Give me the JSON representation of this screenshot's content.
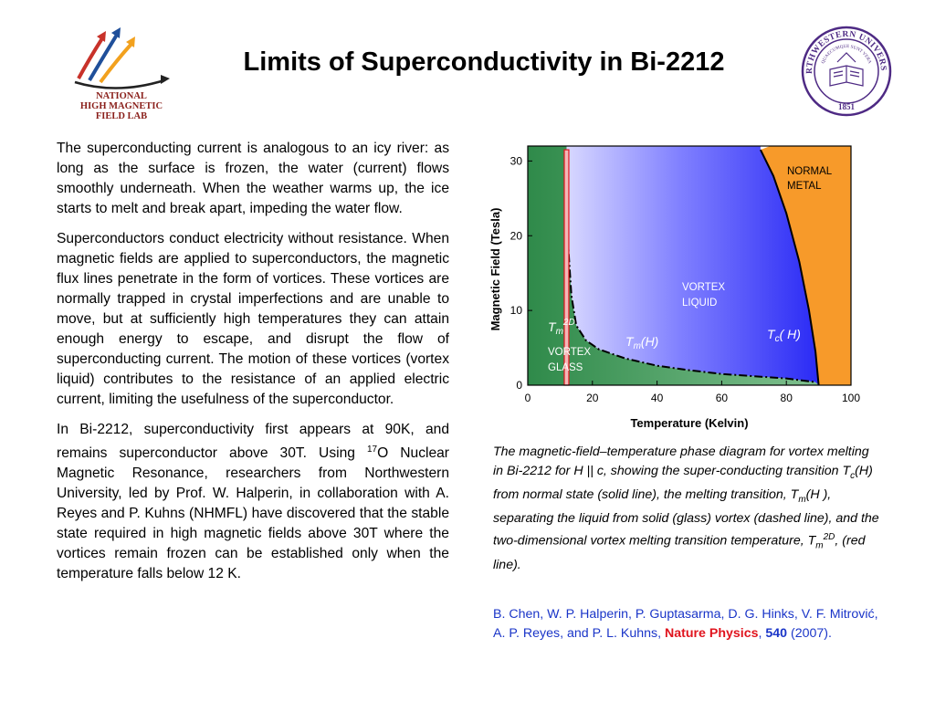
{
  "slide": {
    "title": "Limits of Superconductivity in Bi-2212"
  },
  "logos": {
    "nhmfl": {
      "icon": "nhmfl-arrows-logo",
      "line1": "NATIONAL",
      "line2": "HIGH MAGNETIC",
      "line3": "FIELD LAB",
      "colors": {
        "red": "#c8322a",
        "blue": "#1f4f9a",
        "orange": "#f2a11e",
        "text": "#8a1f1a"
      }
    },
    "northwestern": {
      "icon": "northwestern-seal",
      "ring_text": "NORTHWESTERN UNIVERSITY",
      "motto": "QUAECUMQUE SUNT VERA",
      "year": "1851",
      "color": "#4e2a84"
    }
  },
  "body": {
    "p1": "The superconducting current is analogous to an icy river: as long as the surface is frozen, the water (current) flows smoothly underneath. When the weather warms up, the ice starts to melt and break apart, impeding the water flow.",
    "p2": "Superconductors conduct electricity without resistance. When magnetic fields are applied to superconductors, the magnetic flux lines penetrate in the form of vortices. These vortices are normally trapped in crystal imperfections and are unable to move, but at sufficiently high temperatures they can attain enough energy to escape, and disrupt the flow of superconducting current. The motion of these vortices (vortex liquid) contributes to the resistance of an applied electric current, limiting the usefulness of the superconductor.",
    "p3_a": "In Bi-2212, superconductivity first appears at 90K, and remains superconductor above 30T. Using ",
    "p3_sup": "17",
    "p3_b": "O Nuclear Magnetic Resonance, researchers from Northwestern University, led by Prof. W. Halperin, in collaboration with A. Reyes and P. Kuhns (NHMFL) have discovered that the stable state required in high magnetic fields above 30T where the vortices remain frozen can be established only when the temperature falls below 12 K."
  },
  "diagram": {
    "xlabel": "Temperature (Kelvin)",
    "ylabel": "Magnetic Field (Tesla)",
    "xlim": [
      0,
      100
    ],
    "ylim": [
      0,
      32
    ],
    "xticks": [
      "0",
      "20",
      "40",
      "60",
      "80",
      "100"
    ],
    "yticks": [
      "0",
      "10",
      "20",
      "30"
    ],
    "regions": {
      "normal_l1": "NORMAL",
      "normal_l2": "METAL",
      "liquid_l1": "VORTEX",
      "liquid_l2": "LIQUID",
      "glass_l1": "VORTEX",
      "glass_l2": "GLASS"
    },
    "labels": {
      "tm2d_main": "T",
      "tm2d_sub": "m",
      "tm2d_sup": "2D",
      "tmh_main": "T",
      "tmh_sub": "m",
      "tmh_arg": "(H)",
      "tch_main": "T",
      "tch_sub": "c",
      "tch_arg": "( H)"
    },
    "tc_line": [
      [
        72,
        31.5
      ],
      [
        76,
        28
      ],
      [
        80,
        23
      ],
      [
        84,
        16.5
      ],
      [
        87,
        10
      ],
      [
        89,
        4.5
      ],
      [
        90,
        0
      ]
    ],
    "tm_line": [
      [
        12,
        30
      ],
      [
        12.2,
        24
      ],
      [
        12.6,
        18
      ],
      [
        13.5,
        12
      ],
      [
        15,
        8
      ],
      [
        18,
        6
      ],
      [
        22,
        4.8
      ],
      [
        30,
        3.6
      ],
      [
        40,
        2.6
      ],
      [
        50,
        2.0
      ],
      [
        60,
        1.5
      ],
      [
        70,
        1.2
      ],
      [
        80,
        0.9
      ],
      [
        89,
        0.4
      ]
    ],
    "tm2d_value": 12,
    "tm2d_top": 31.5,
    "colors": {
      "liquid": "#3434f5",
      "liquid_light": "#d8d8ff",
      "glass": "#2f8a4a",
      "normal": "#f79a2a",
      "tm2d": "#e0141e"
    }
  },
  "caption": {
    "a": "The magnetic-field–temperature phase diagram for vortex melting in Bi-2212 for H || c, showing the super-conducting transition T",
    "a_sub": "c",
    "b": "(H) from normal state (solid line), the melting transition, T",
    "b_sub": "m",
    "c": "(H ), separating the liquid from solid (glass) vortex (dashed line), and the two-dimensional vortex melting transition temperature, T",
    "c_sub": "m",
    "c_sup": "2D",
    "d": ", (red line)."
  },
  "reference": {
    "authors": "B. Chen, W. P. Halperin, P. Guptasarma, D. G. Hinks, V. F. Mitrović, A. P. Reyes, and P. L. Kuhns, ",
    "journal": "Nature Physics",
    "sep": ", ",
    "volume": "540",
    "year": " (2007)."
  }
}
